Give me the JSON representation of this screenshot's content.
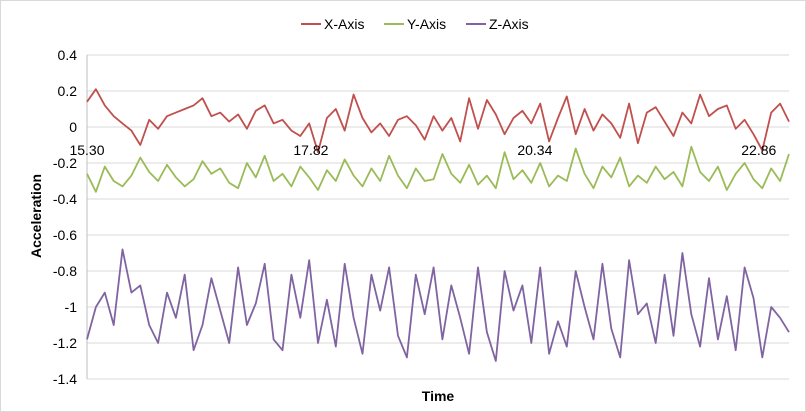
{
  "chart_data": {
    "type": "line",
    "title": "",
    "xlabel": "Time",
    "ylabel": "Acceleration",
    "xlim": [
      15.3,
      23.2
    ],
    "ylim": [
      -1.4,
      0.4
    ],
    "y_ticks": [
      "0.4",
      "0.2",
      "0",
      "-0.2",
      "-0.4",
      "-0.6",
      "-0.8",
      "-1",
      "-1.2",
      "-1.4"
    ],
    "x_ticks": [
      {
        "value": 15.3,
        "label": "15.30"
      },
      {
        "value": 17.82,
        "label": "17.82"
      },
      {
        "value": 20.34,
        "label": "20.34"
      },
      {
        "value": 22.86,
        "label": "22.86"
      }
    ],
    "grid": true,
    "legend_position": "top-center",
    "x": [
      15.3,
      15.4,
      15.5,
      15.6,
      15.7,
      15.8,
      15.9,
      16.0,
      16.1,
      16.2,
      16.3,
      16.4,
      16.5,
      16.6,
      16.7,
      16.8,
      16.9,
      17.0,
      17.1,
      17.2,
      17.3,
      17.4,
      17.5,
      17.6,
      17.7,
      17.8,
      17.9,
      18.0,
      18.1,
      18.2,
      18.3,
      18.4,
      18.5,
      18.6,
      18.7,
      18.8,
      18.9,
      19.0,
      19.1,
      19.2,
      19.3,
      19.4,
      19.5,
      19.6,
      19.7,
      19.8,
      19.9,
      20.0,
      20.1,
      20.2,
      20.3,
      20.4,
      20.5,
      20.6,
      20.7,
      20.8,
      20.9,
      21.0,
      21.1,
      21.2,
      21.3,
      21.4,
      21.5,
      21.6,
      21.7,
      21.8,
      21.9,
      22.0,
      22.1,
      22.2,
      22.3,
      22.4,
      22.5,
      22.6,
      22.7,
      22.8,
      22.9,
      23.0,
      23.1,
      23.2
    ],
    "series": [
      {
        "name": "X-Axis",
        "color": "#c0504d",
        "values": [
          0.14,
          0.21,
          0.12,
          0.06,
          0.02,
          -0.02,
          -0.1,
          0.04,
          -0.01,
          0.06,
          0.08,
          0.1,
          0.12,
          0.16,
          0.06,
          0.08,
          0.03,
          0.07,
          -0.01,
          0.09,
          0.12,
          0.02,
          0.04,
          -0.02,
          -0.05,
          0.02,
          -0.14,
          0.05,
          0.1,
          -0.02,
          0.18,
          0.05,
          -0.03,
          0.02,
          -0.05,
          0.04,
          0.06,
          0.01,
          -0.07,
          0.06,
          -0.02,
          0.05,
          -0.08,
          0.16,
          -0.01,
          0.15,
          0.07,
          -0.04,
          0.05,
          0.09,
          0.02,
          0.13,
          -0.08,
          0.05,
          0.17,
          -0.04,
          0.1,
          -0.02,
          0.07,
          0.02,
          -0.06,
          0.13,
          -0.09,
          0.08,
          0.11,
          0.03,
          -0.05,
          0.08,
          0.02,
          0.18,
          0.06,
          0.1,
          0.12,
          -0.01,
          0.04,
          -0.04,
          -0.13,
          0.08,
          0.13,
          0.03
        ]
      },
      {
        "name": "Y-Axis",
        "color": "#9bbb59",
        "values": [
          -0.26,
          -0.36,
          -0.22,
          -0.3,
          -0.33,
          -0.27,
          -0.17,
          -0.25,
          -0.3,
          -0.21,
          -0.28,
          -0.33,
          -0.29,
          -0.19,
          -0.26,
          -0.23,
          -0.31,
          -0.34,
          -0.2,
          -0.28,
          -0.16,
          -0.3,
          -0.26,
          -0.33,
          -0.22,
          -0.28,
          -0.35,
          -0.24,
          -0.3,
          -0.18,
          -0.27,
          -0.33,
          -0.23,
          -0.3,
          -0.16,
          -0.27,
          -0.34,
          -0.23,
          -0.3,
          -0.29,
          -0.15,
          -0.26,
          -0.31,
          -0.21,
          -0.32,
          -0.27,
          -0.34,
          -0.14,
          -0.29,
          -0.24,
          -0.31,
          -0.2,
          -0.33,
          -0.27,
          -0.3,
          -0.12,
          -0.26,
          -0.34,
          -0.22,
          -0.28,
          -0.17,
          -0.33,
          -0.27,
          -0.31,
          -0.22,
          -0.29,
          -0.25,
          -0.33,
          -0.11,
          -0.25,
          -0.3,
          -0.22,
          -0.35,
          -0.26,
          -0.2,
          -0.29,
          -0.34,
          -0.23,
          -0.3,
          -0.15
        ]
      },
      {
        "name": "Z-Axis",
        "color": "#8064a2",
        "values": [
          -1.18,
          -1.0,
          -0.92,
          -1.1,
          -0.68,
          -0.92,
          -0.88,
          -1.1,
          -1.2,
          -0.92,
          -1.06,
          -0.82,
          -1.24,
          -1.1,
          -0.84,
          -1.02,
          -1.2,
          -0.78,
          -1.1,
          -0.98,
          -0.76,
          -1.18,
          -1.24,
          -0.82,
          -1.06,
          -0.74,
          -1.2,
          -0.96,
          -1.22,
          -0.76,
          -1.06,
          -1.26,
          -0.82,
          -1.02,
          -0.78,
          -1.16,
          -1.28,
          -0.82,
          -1.04,
          -0.78,
          -1.18,
          -0.88,
          -1.06,
          -1.26,
          -0.78,
          -1.14,
          -1.3,
          -0.8,
          -1.02,
          -0.88,
          -1.2,
          -0.78,
          -1.26,
          -1.08,
          -1.22,
          -0.8,
          -1.0,
          -1.18,
          -0.76,
          -1.12,
          -1.28,
          -0.74,
          -1.04,
          -0.98,
          -1.2,
          -0.82,
          -1.16,
          -0.7,
          -1.04,
          -1.22,
          -0.84,
          -1.18,
          -0.94,
          -1.24,
          -0.78,
          -0.95,
          -1.28,
          -1.0,
          -1.06,
          -1.14
        ]
      }
    ]
  }
}
